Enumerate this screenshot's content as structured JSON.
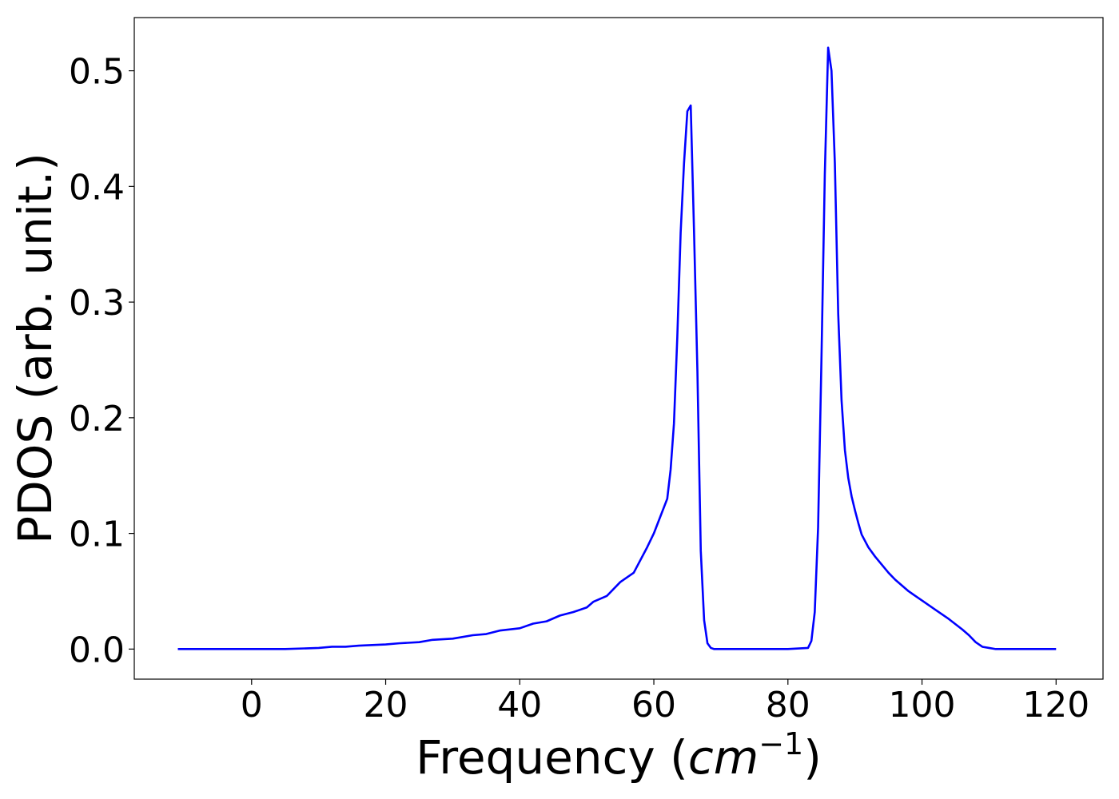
{
  "chart_data": {
    "type": "line",
    "title": "",
    "xlabel": "Frequency (",
    "xlabel_math_base": "cm",
    "xlabel_math_exp": "−1",
    "xlabel_close": ")",
    "ylabel": "PDOS (arb. unit.)",
    "xlim": [
      -17.5,
      127
    ],
    "ylim": [
      -0.026,
      0.546
    ],
    "xticks": [
      0,
      20,
      40,
      60,
      80,
      100,
      120
    ],
    "xtick_labels": [
      "0",
      "20",
      "40",
      "60",
      "80",
      "100",
      "120"
    ],
    "yticks": [
      0.0,
      0.1,
      0.2,
      0.3,
      0.4,
      0.5
    ],
    "ytick_labels": [
      "0.0",
      "0.1",
      "0.2",
      "0.3",
      "0.4",
      "0.5"
    ],
    "grid": false,
    "series": [
      {
        "color": "#0000ff",
        "x": [
          -11,
          0,
          5,
          10,
          12,
          14,
          16,
          20,
          22,
          25,
          27,
          30,
          33,
          35,
          37,
          40,
          42,
          44,
          46,
          48,
          50,
          51,
          53,
          55,
          57,
          59,
          60,
          61,
          62,
          62.5,
          63,
          63.5,
          64,
          64.5,
          65,
          65.5,
          66,
          66.5,
          67,
          67.5,
          68,
          68.5,
          69,
          69.5,
          70,
          71,
          75,
          80,
          83,
          83.5,
          84,
          84.5,
          85,
          85.5,
          86,
          86.5,
          87,
          87.5,
          88,
          88.5,
          89,
          89.5,
          90,
          90.5,
          91,
          92,
          93,
          94,
          95,
          96,
          97,
          98,
          100,
          102,
          104,
          106,
          107,
          108,
          109,
          110,
          111,
          112,
          115,
          120
        ],
        "y": [
          0.0,
          0.0,
          0.0,
          0.001,
          0.002,
          0.002,
          0.003,
          0.004,
          0.005,
          0.006,
          0.008,
          0.009,
          0.012,
          0.013,
          0.016,
          0.018,
          0.022,
          0.024,
          0.029,
          0.032,
          0.036,
          0.041,
          0.046,
          0.058,
          0.066,
          0.088,
          0.1,
          0.115,
          0.13,
          0.155,
          0.195,
          0.27,
          0.36,
          0.42,
          0.465,
          0.47,
          0.36,
          0.24,
          0.085,
          0.025,
          0.005,
          0.001,
          0.0,
          0.0,
          0.0,
          0.0,
          0.0,
          0.0,
          0.001,
          0.007,
          0.032,
          0.105,
          0.25,
          0.41,
          0.52,
          0.5,
          0.42,
          0.29,
          0.215,
          0.172,
          0.148,
          0.132,
          0.12,
          0.109,
          0.099,
          0.088,
          0.08,
          0.073,
          0.066,
          0.06,
          0.055,
          0.05,
          0.042,
          0.034,
          0.026,
          0.017,
          0.012,
          0.006,
          0.002,
          0.001,
          0.0,
          0.0,
          0.0,
          0.0
        ]
      }
    ]
  }
}
